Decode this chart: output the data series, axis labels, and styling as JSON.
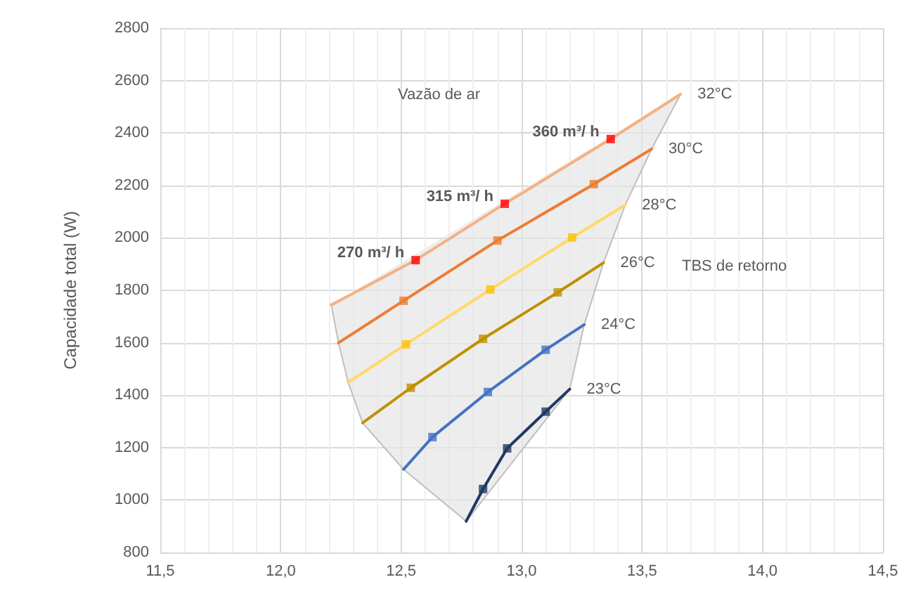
{
  "chart_data": {
    "type": "line",
    "ylabel": "Capacidade total (W)",
    "xlim": [
      11.5,
      14.5
    ],
    "xticks": [
      {
        "value": 11.5,
        "label": "11,5"
      },
      {
        "value": 12.0,
        "label": "12,0"
      },
      {
        "value": 12.5,
        "label": "12,5"
      },
      {
        "value": 13.0,
        "label": "13,0"
      },
      {
        "value": 13.5,
        "label": "13,5"
      },
      {
        "value": 14.0,
        "label": "14,0"
      },
      {
        "value": 14.5,
        "label": "14,5"
      }
    ],
    "ylim": [
      800,
      2800
    ],
    "yticks": [
      800,
      1000,
      1200,
      1400,
      1600,
      1800,
      2000,
      2200,
      2400,
      2600,
      2800
    ],
    "grid": true,
    "legend": false,
    "series": [
      {
        "type": "area",
        "color": "#e6e6e6",
        "x": [
          12.21,
          12.24,
          12.28,
          12.34,
          12.51,
          12.77,
          13.2,
          13.26,
          13.34,
          13.43,
          13.54,
          13.66
        ],
        "values": [
          1744,
          1600,
          1449,
          1294,
          1117,
          919,
          1423,
          1669,
          1905,
          2125,
          2339,
          2548
        ]
      },
      {
        "name": "32°C",
        "color": "#f4b183",
        "marker": "none",
        "x": [
          12.21,
          12.56,
          12.93,
          13.37,
          13.66
        ],
        "values": [
          1744,
          1915,
          2130,
          2377,
          2548
        ]
      },
      {
        "type": "scatter",
        "color": "#ff0000",
        "marker": "square",
        "x": [
          12.56,
          12.93,
          13.37
        ],
        "values": [
          1915,
          2130,
          2377
        ]
      },
      {
        "name": "30°C",
        "color": "#ed7d31",
        "marker": "none",
        "x": [
          12.24,
          12.51,
          12.9,
          13.3,
          13.54
        ],
        "values": [
          1600,
          1760,
          1990,
          2205,
          2339
        ]
      },
      {
        "type": "scatter",
        "color": "#ed7d31",
        "marker": "square",
        "x": [
          12.51,
          12.9,
          13.3
        ],
        "values": [
          1760,
          1990,
          2205
        ]
      },
      {
        "name": "28°C",
        "color": "#ffd966",
        "marker": "none",
        "x": [
          12.28,
          12.52,
          12.87,
          13.21,
          13.43
        ],
        "values": [
          1449,
          1594,
          1803,
          2001,
          2125
        ]
      },
      {
        "type": "scatter",
        "color": "#ffc000",
        "marker": "square",
        "x": [
          12.52,
          12.87,
          13.21
        ],
        "values": [
          1594,
          1803,
          2001
        ]
      },
      {
        "name": "26°C",
        "color": "#bf9000",
        "marker": "none",
        "x": [
          12.34,
          12.54,
          12.84,
          13.15,
          13.34
        ],
        "values": [
          1294,
          1428,
          1615,
          1792,
          1905
        ]
      },
      {
        "type": "scatter",
        "color": "#bf9000",
        "marker": "square",
        "x": [
          12.54,
          12.84,
          13.15
        ],
        "values": [
          1428,
          1615,
          1792
        ]
      },
      {
        "name": "24°C",
        "color": "#4472c4",
        "marker": "none",
        "x": [
          12.51,
          12.63,
          12.86,
          13.1,
          13.26
        ],
        "values": [
          1117,
          1240,
          1412,
          1573,
          1669
        ]
      },
      {
        "type": "scatter",
        "color": "#4472c4",
        "marker": "square",
        "x": [
          12.63,
          12.86,
          13.1
        ],
        "values": [
          1240,
          1412,
          1573
        ]
      },
      {
        "name": "23°C",
        "color": "#203864",
        "marker": "none",
        "x": [
          12.77,
          12.84,
          12.94,
          13.1,
          13.2
        ],
        "values": [
          919,
          1042,
          1197,
          1337,
          1423
        ]
      },
      {
        "type": "scatter",
        "color": "#203864",
        "marker": "square",
        "x": [
          12.84,
          12.94,
          13.1
        ],
        "values": [
          1042,
          1197,
          1337
        ]
      }
    ],
    "annotations": [
      "Vazão de ar",
      "TBS de retorno",
      {
        "text": "270 m³/ h",
        "x": 12.56,
        "y": 1915
      },
      {
        "text": "315 m³/ h",
        "x": 12.93,
        "y": 2130
      },
      {
        "text": "360 m³/ h",
        "x": 13.37,
        "y": 2377
      }
    ]
  }
}
